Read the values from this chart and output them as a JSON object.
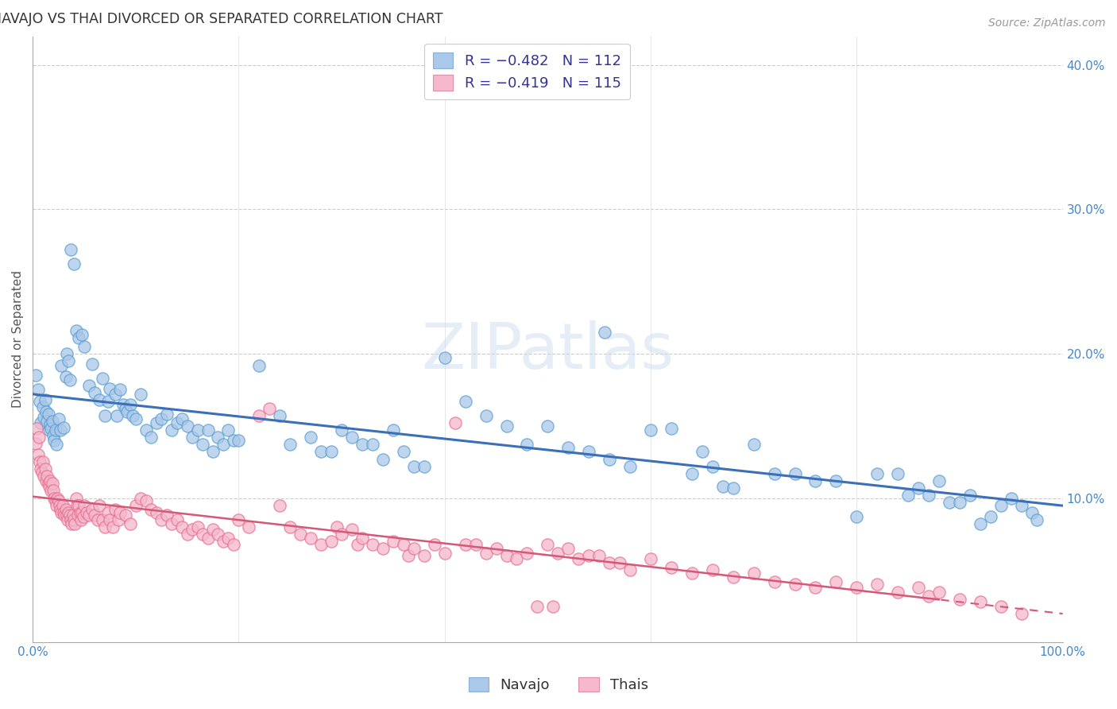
{
  "title": "NAVAJO VS THAI DIVORCED OR SEPARATED CORRELATION CHART",
  "source": "Source: ZipAtlas.com",
  "ylabel": "Divorced or Separated",
  "xlim": [
    0,
    1.0
  ],
  "ylim": [
    0,
    0.42
  ],
  "xticks": [
    0.0,
    0.2,
    0.4,
    0.6,
    0.8,
    1.0
  ],
  "xticklabels_ends": [
    "0.0%",
    "100.0%"
  ],
  "yticks": [
    0.1,
    0.2,
    0.3,
    0.4
  ],
  "yticklabels": [
    "10.0%",
    "20.0%",
    "30.0%",
    "40.0%"
  ],
  "watermark": "ZIPatlas",
  "legend_navajo_label": "R = −0.482   N = 112",
  "legend_thai_label": "R = −0.419   N = 115",
  "navajo_face_color": "#aac8e8",
  "navajo_edge_color": "#5a9fd4",
  "thai_face_color": "#f5b8cc",
  "thai_edge_color": "#e87090",
  "navajo_line_color": "#3b70b8",
  "thai_line_color": "#d45878",
  "background_color": "#ffffff",
  "grid_color": "#cccccc",
  "title_color": "#333333",
  "axis_label_color": "#555555",
  "tick_color": "#4488cc",
  "navajo_points": [
    [
      0.003,
      0.185
    ],
    [
      0.005,
      0.175
    ],
    [
      0.007,
      0.167
    ],
    [
      0.008,
      0.152
    ],
    [
      0.01,
      0.163
    ],
    [
      0.011,
      0.156
    ],
    [
      0.012,
      0.168
    ],
    [
      0.013,
      0.16
    ],
    [
      0.014,
      0.153
    ],
    [
      0.015,
      0.158
    ],
    [
      0.016,
      0.147
    ],
    [
      0.017,
      0.151
    ],
    [
      0.018,
      0.148
    ],
    [
      0.019,
      0.153
    ],
    [
      0.02,
      0.143
    ],
    [
      0.021,
      0.14
    ],
    [
      0.022,
      0.147
    ],
    [
      0.023,
      0.137
    ],
    [
      0.025,
      0.155
    ],
    [
      0.027,
      0.147
    ],
    [
      0.028,
      0.192
    ],
    [
      0.03,
      0.149
    ],
    [
      0.032,
      0.184
    ],
    [
      0.033,
      0.2
    ],
    [
      0.035,
      0.195
    ],
    [
      0.036,
      0.182
    ],
    [
      0.037,
      0.272
    ],
    [
      0.04,
      0.262
    ],
    [
      0.042,
      0.216
    ],
    [
      0.045,
      0.211
    ],
    [
      0.048,
      0.213
    ],
    [
      0.05,
      0.205
    ],
    [
      0.055,
      0.178
    ],
    [
      0.058,
      0.193
    ],
    [
      0.06,
      0.173
    ],
    [
      0.065,
      0.168
    ],
    [
      0.068,
      0.183
    ],
    [
      0.07,
      0.157
    ],
    [
      0.073,
      0.167
    ],
    [
      0.075,
      0.176
    ],
    [
      0.08,
      0.172
    ],
    [
      0.082,
      0.157
    ],
    [
      0.085,
      0.175
    ],
    [
      0.088,
      0.165
    ],
    [
      0.09,
      0.162
    ],
    [
      0.092,
      0.16
    ],
    [
      0.095,
      0.165
    ],
    [
      0.097,
      0.157
    ],
    [
      0.1,
      0.155
    ],
    [
      0.105,
      0.172
    ],
    [
      0.11,
      0.147
    ],
    [
      0.115,
      0.142
    ],
    [
      0.12,
      0.152
    ],
    [
      0.125,
      0.155
    ],
    [
      0.13,
      0.158
    ],
    [
      0.135,
      0.147
    ],
    [
      0.14,
      0.152
    ],
    [
      0.145,
      0.155
    ],
    [
      0.15,
      0.15
    ],
    [
      0.155,
      0.142
    ],
    [
      0.16,
      0.147
    ],
    [
      0.165,
      0.137
    ],
    [
      0.17,
      0.147
    ],
    [
      0.175,
      0.132
    ],
    [
      0.18,
      0.142
    ],
    [
      0.185,
      0.137
    ],
    [
      0.19,
      0.147
    ],
    [
      0.195,
      0.14
    ],
    [
      0.2,
      0.14
    ],
    [
      0.22,
      0.192
    ],
    [
      0.24,
      0.157
    ],
    [
      0.25,
      0.137
    ],
    [
      0.27,
      0.142
    ],
    [
      0.28,
      0.132
    ],
    [
      0.29,
      0.132
    ],
    [
      0.3,
      0.147
    ],
    [
      0.31,
      0.142
    ],
    [
      0.32,
      0.137
    ],
    [
      0.33,
      0.137
    ],
    [
      0.34,
      0.127
    ],
    [
      0.35,
      0.147
    ],
    [
      0.36,
      0.132
    ],
    [
      0.37,
      0.122
    ],
    [
      0.38,
      0.122
    ],
    [
      0.4,
      0.197
    ],
    [
      0.42,
      0.167
    ],
    [
      0.44,
      0.157
    ],
    [
      0.46,
      0.15
    ],
    [
      0.48,
      0.137
    ],
    [
      0.5,
      0.15
    ],
    [
      0.52,
      0.135
    ],
    [
      0.54,
      0.132
    ],
    [
      0.555,
      0.215
    ],
    [
      0.56,
      0.127
    ],
    [
      0.58,
      0.122
    ],
    [
      0.6,
      0.147
    ],
    [
      0.62,
      0.148
    ],
    [
      0.64,
      0.117
    ],
    [
      0.65,
      0.132
    ],
    [
      0.66,
      0.122
    ],
    [
      0.67,
      0.108
    ],
    [
      0.68,
      0.107
    ],
    [
      0.7,
      0.137
    ],
    [
      0.72,
      0.117
    ],
    [
      0.74,
      0.117
    ],
    [
      0.76,
      0.112
    ],
    [
      0.78,
      0.112
    ],
    [
      0.8,
      0.087
    ],
    [
      0.82,
      0.117
    ],
    [
      0.84,
      0.117
    ],
    [
      0.85,
      0.102
    ],
    [
      0.86,
      0.107
    ],
    [
      0.87,
      0.102
    ],
    [
      0.88,
      0.112
    ],
    [
      0.89,
      0.097
    ],
    [
      0.9,
      0.097
    ],
    [
      0.91,
      0.102
    ],
    [
      0.92,
      0.082
    ],
    [
      0.93,
      0.087
    ],
    [
      0.94,
      0.095
    ],
    [
      0.95,
      0.1
    ],
    [
      0.96,
      0.095
    ],
    [
      0.97,
      0.09
    ],
    [
      0.975,
      0.085
    ]
  ],
  "thai_points": [
    [
      0.003,
      0.138
    ],
    [
      0.004,
      0.148
    ],
    [
      0.005,
      0.13
    ],
    [
      0.006,
      0.142
    ],
    [
      0.007,
      0.125
    ],
    [
      0.008,
      0.12
    ],
    [
      0.009,
      0.118
    ],
    [
      0.01,
      0.125
    ],
    [
      0.011,
      0.115
    ],
    [
      0.012,
      0.12
    ],
    [
      0.013,
      0.112
    ],
    [
      0.014,
      0.115
    ],
    [
      0.015,
      0.11
    ],
    [
      0.016,
      0.108
    ],
    [
      0.017,
      0.112
    ],
    [
      0.018,
      0.105
    ],
    [
      0.019,
      0.11
    ],
    [
      0.02,
      0.105
    ],
    [
      0.021,
      0.1
    ],
    [
      0.022,
      0.098
    ],
    [
      0.023,
      0.095
    ],
    [
      0.024,
      0.1
    ],
    [
      0.025,
      0.098
    ],
    [
      0.026,
      0.095
    ],
    [
      0.027,
      0.092
    ],
    [
      0.028,
      0.09
    ],
    [
      0.029,
      0.095
    ],
    [
      0.03,
      0.09
    ],
    [
      0.031,
      0.088
    ],
    [
      0.032,
      0.092
    ],
    [
      0.033,
      0.088
    ],
    [
      0.034,
      0.085
    ],
    [
      0.035,
      0.09
    ],
    [
      0.036,
      0.088
    ],
    [
      0.037,
      0.085
    ],
    [
      0.038,
      0.082
    ],
    [
      0.039,
      0.088
    ],
    [
      0.04,
      0.085
    ],
    [
      0.041,
      0.082
    ],
    [
      0.042,
      0.1
    ],
    [
      0.043,
      0.095
    ],
    [
      0.044,
      0.088
    ],
    [
      0.045,
      0.095
    ],
    [
      0.046,
      0.09
    ],
    [
      0.047,
      0.085
    ],
    [
      0.048,
      0.09
    ],
    [
      0.049,
      0.087
    ],
    [
      0.05,
      0.095
    ],
    [
      0.052,
      0.09
    ],
    [
      0.055,
      0.088
    ],
    [
      0.058,
      0.092
    ],
    [
      0.06,
      0.088
    ],
    [
      0.063,
      0.085
    ],
    [
      0.065,
      0.095
    ],
    [
      0.068,
      0.085
    ],
    [
      0.07,
      0.08
    ],
    [
      0.073,
      0.09
    ],
    [
      0.075,
      0.085
    ],
    [
      0.078,
      0.08
    ],
    [
      0.08,
      0.092
    ],
    [
      0.083,
      0.085
    ],
    [
      0.085,
      0.09
    ],
    [
      0.09,
      0.088
    ],
    [
      0.095,
      0.082
    ],
    [
      0.1,
      0.095
    ],
    [
      0.105,
      0.1
    ],
    [
      0.11,
      0.098
    ],
    [
      0.115,
      0.092
    ],
    [
      0.12,
      0.09
    ],
    [
      0.125,
      0.085
    ],
    [
      0.13,
      0.088
    ],
    [
      0.135,
      0.082
    ],
    [
      0.14,
      0.085
    ],
    [
      0.145,
      0.08
    ],
    [
      0.15,
      0.075
    ],
    [
      0.155,
      0.078
    ],
    [
      0.16,
      0.08
    ],
    [
      0.165,
      0.075
    ],
    [
      0.17,
      0.072
    ],
    [
      0.175,
      0.078
    ],
    [
      0.18,
      0.075
    ],
    [
      0.185,
      0.07
    ],
    [
      0.19,
      0.072
    ],
    [
      0.195,
      0.068
    ],
    [
      0.2,
      0.085
    ],
    [
      0.21,
      0.08
    ],
    [
      0.22,
      0.157
    ],
    [
      0.23,
      0.162
    ],
    [
      0.24,
      0.095
    ],
    [
      0.25,
      0.08
    ],
    [
      0.26,
      0.075
    ],
    [
      0.27,
      0.072
    ],
    [
      0.28,
      0.068
    ],
    [
      0.29,
      0.07
    ],
    [
      0.295,
      0.08
    ],
    [
      0.3,
      0.075
    ],
    [
      0.31,
      0.078
    ],
    [
      0.315,
      0.068
    ],
    [
      0.32,
      0.072
    ],
    [
      0.33,
      0.068
    ],
    [
      0.34,
      0.065
    ],
    [
      0.35,
      0.07
    ],
    [
      0.36,
      0.068
    ],
    [
      0.365,
      0.06
    ],
    [
      0.37,
      0.065
    ],
    [
      0.38,
      0.06
    ],
    [
      0.39,
      0.068
    ],
    [
      0.4,
      0.062
    ],
    [
      0.41,
      0.152
    ],
    [
      0.42,
      0.068
    ],
    [
      0.43,
      0.068
    ],
    [
      0.44,
      0.062
    ],
    [
      0.45,
      0.065
    ],
    [
      0.46,
      0.06
    ],
    [
      0.47,
      0.058
    ],
    [
      0.48,
      0.062
    ],
    [
      0.49,
      0.025
    ],
    [
      0.5,
      0.068
    ],
    [
      0.505,
      0.025
    ],
    [
      0.51,
      0.062
    ],
    [
      0.52,
      0.065
    ],
    [
      0.53,
      0.058
    ],
    [
      0.54,
      0.06
    ],
    [
      0.55,
      0.06
    ],
    [
      0.56,
      0.055
    ],
    [
      0.57,
      0.055
    ],
    [
      0.58,
      0.05
    ],
    [
      0.6,
      0.058
    ],
    [
      0.62,
      0.052
    ],
    [
      0.64,
      0.048
    ],
    [
      0.66,
      0.05
    ],
    [
      0.68,
      0.045
    ],
    [
      0.7,
      0.048
    ],
    [
      0.72,
      0.042
    ],
    [
      0.74,
      0.04
    ],
    [
      0.76,
      0.038
    ],
    [
      0.78,
      0.042
    ],
    [
      0.8,
      0.038
    ],
    [
      0.82,
      0.04
    ],
    [
      0.84,
      0.035
    ],
    [
      0.86,
      0.038
    ],
    [
      0.87,
      0.032
    ],
    [
      0.88,
      0.035
    ],
    [
      0.9,
      0.03
    ],
    [
      0.92,
      0.028
    ],
    [
      0.94,
      0.025
    ],
    [
      0.96,
      0.02
    ]
  ]
}
